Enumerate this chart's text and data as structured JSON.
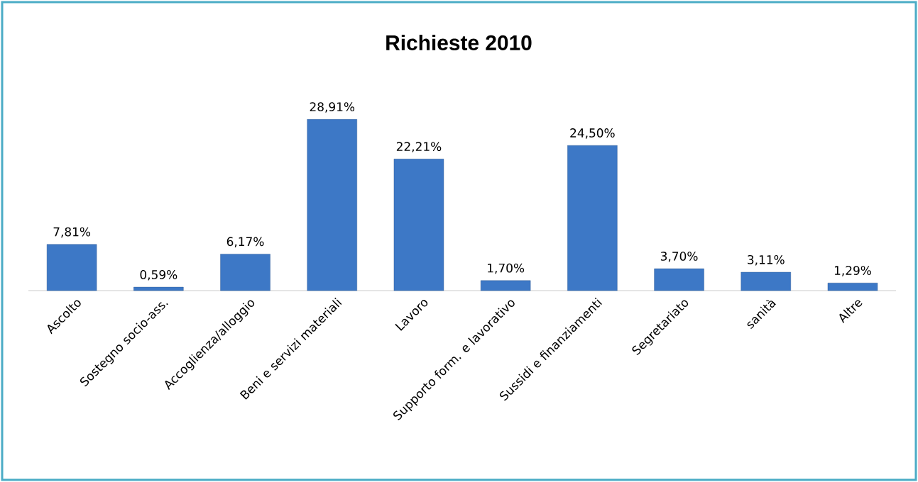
{
  "chart_data": {
    "type": "bar",
    "title": "Richieste 2010",
    "categories": [
      "Ascolto",
      "Sostegno socio-ass.",
      "Accoglienza/alloggio",
      "Beni e servizi materiali",
      "Lavoro",
      "Supporto form. e lavorativo",
      "Sussidi e finanziamenti",
      "Segretariato",
      "sanità",
      "Altre"
    ],
    "values": [
      7.81,
      0.59,
      6.17,
      28.91,
      22.21,
      1.7,
      24.5,
      3.7,
      3.11,
      1.29
    ],
    "value_labels": [
      "7,81%",
      "0,59%",
      "6,17%",
      "28,91%",
      "22,21%",
      "1,70%",
      "24,50%",
      "3,70%",
      "3,11%",
      "1,29%"
    ],
    "color": "#3d78c6"
  }
}
